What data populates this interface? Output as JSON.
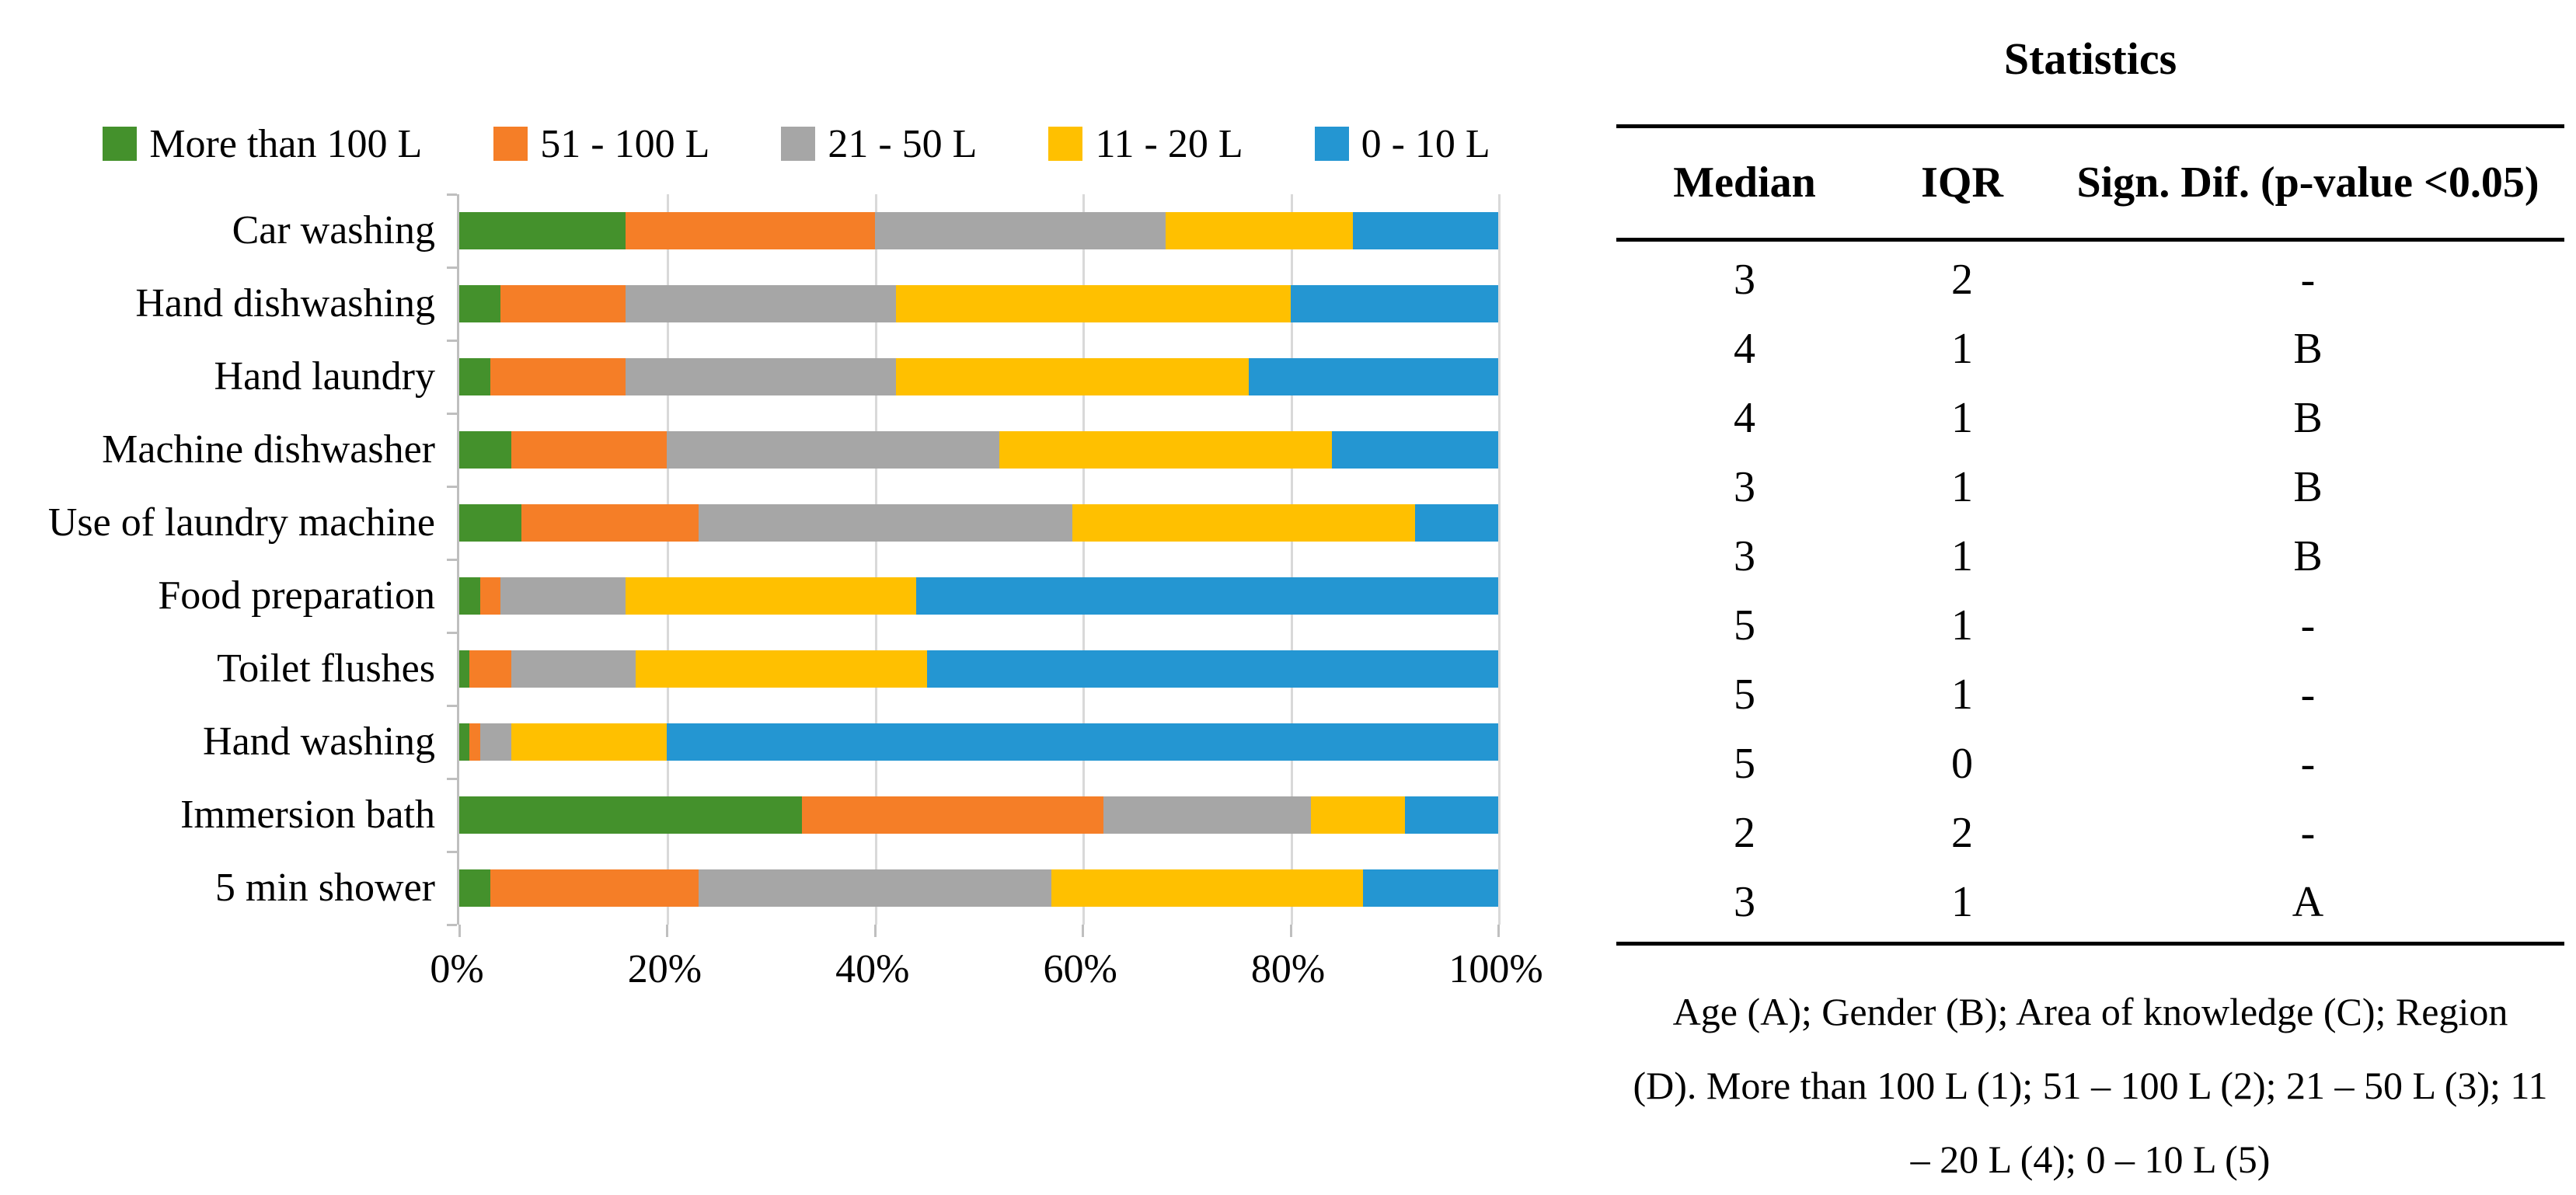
{
  "chart_data": {
    "type": "bar",
    "orientation": "horizontal",
    "stacked": true,
    "unit": "percent",
    "title": "",
    "xlabel": "",
    "ylabel": "",
    "xlim": [
      0,
      100
    ],
    "grid": true,
    "legend_position": "top",
    "x_ticks": [
      "0%",
      "20%",
      "40%",
      "60%",
      "80%",
      "100%"
    ],
    "categories": [
      "Car washing",
      "Hand dishwashing",
      "Hand laundry",
      "Machine dishwasher",
      "Use of laundry machine",
      "Food preparation",
      "Toilet flushes",
      "Hand washing",
      "Immersion bath",
      "5 min shower"
    ],
    "series": [
      {
        "name": "More than 100 L",
        "color": "#44912C",
        "values": [
          16,
          4,
          3,
          5,
          6,
          2,
          1,
          1,
          33,
          3
        ]
      },
      {
        "name": "51 - 100 L",
        "color": "#F57E27",
        "values": [
          24,
          12,
          13,
          15,
          17,
          2,
          4,
          1,
          29,
          20
        ]
      },
      {
        "name": "21 - 50 L",
        "color": "#A6A6A6",
        "values": [
          28,
          26,
          26,
          32,
          36,
          12,
          12,
          3,
          20,
          34
        ]
      },
      {
        "name": "11 - 20 L",
        "color": "#FFC000",
        "values": [
          18,
          38,
          34,
          32,
          33,
          28,
          28,
          15,
          9,
          30
        ]
      },
      {
        "name": "0 - 10 L",
        "color": "#2496D2",
        "values": [
          14,
          20,
          24,
          16,
          8,
          56,
          55,
          80,
          9,
          13
        ]
      }
    ]
  },
  "table": {
    "title": "Statistics",
    "columns": [
      "Median",
      "IQR",
      "Sign. Dif. (p-value <0.05)"
    ],
    "rows": [
      [
        "3",
        "2",
        "-"
      ],
      [
        "4",
        "1",
        "B"
      ],
      [
        "4",
        "1",
        "B"
      ],
      [
        "3",
        "1",
        "B"
      ],
      [
        "3",
        "1",
        "B"
      ],
      [
        "5",
        "1",
        "-"
      ],
      [
        "5",
        "1",
        "-"
      ],
      [
        "5",
        "0",
        "-"
      ],
      [
        "2",
        "2",
        "-"
      ],
      [
        "3",
        "1",
        "A"
      ]
    ]
  },
  "footnote": {
    "lines": [
      "Age (A); Gender (B); Area of knowledge (C); Region",
      "(D). More than 100 L (1); 51 – 100 L (2); 21 – 50 L (3); 11",
      "– 20 L (4); 0 – 10 L (5)"
    ]
  },
  "colors": {
    "gridline": "#D9D9D9",
    "axis": "#BFBFBF",
    "text": "#000000",
    "background": "#FFFFFF"
  }
}
